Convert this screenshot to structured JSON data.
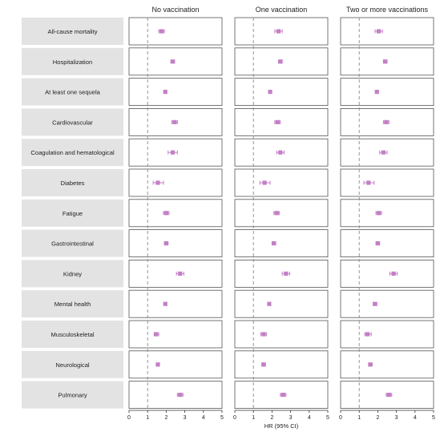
{
  "chart_data": {
    "type": "forest",
    "xlabel": "HR (95% CI)",
    "xlim": [
      0,
      5
    ],
    "xticks": [
      "0",
      "1",
      "2",
      "3",
      "4",
      "5"
    ],
    "reference_line": 1,
    "panels": [
      "No vaccination",
      "One vaccination",
      "Two or more vaccinations"
    ],
    "outcomes": [
      {
        "label": "All-cause mortality",
        "hr": [
          [
            1.75,
            1.6,
            1.9
          ],
          [
            2.35,
            2.15,
            2.55
          ],
          [
            2.05,
            1.85,
            2.25
          ]
        ]
      },
      {
        "label": "Hospitalization",
        "hr": [
          [
            2.35,
            2.25,
            2.45
          ],
          [
            2.45,
            2.35,
            2.55
          ],
          [
            2.4,
            2.3,
            2.5
          ]
        ]
      },
      {
        "label": "At least one sequela",
        "hr": [
          [
            1.95,
            1.9,
            2.0
          ],
          [
            1.9,
            1.85,
            1.95
          ],
          [
            1.95,
            1.9,
            2.0
          ]
        ]
      },
      {
        "label": "Cardiovascular",
        "hr": [
          [
            2.45,
            2.3,
            2.6
          ],
          [
            2.3,
            2.15,
            2.45
          ],
          [
            2.45,
            2.3,
            2.6
          ]
        ]
      },
      {
        "label": "Coagulation and hematological",
        "hr": [
          [
            2.35,
            2.1,
            2.6
          ],
          [
            2.45,
            2.25,
            2.65
          ],
          [
            2.3,
            2.1,
            2.5
          ]
        ]
      },
      {
        "label": "Diabetes",
        "hr": [
          [
            1.55,
            1.3,
            1.85
          ],
          [
            1.6,
            1.35,
            1.9
          ],
          [
            1.5,
            1.25,
            1.8
          ]
        ]
      },
      {
        "label": "Fatigue",
        "hr": [
          [
            2.0,
            1.85,
            2.15
          ],
          [
            2.25,
            2.1,
            2.4
          ],
          [
            2.05,
            1.9,
            2.2
          ]
        ]
      },
      {
        "label": "Gastrointestinal",
        "hr": [
          [
            2.0,
            1.9,
            2.1
          ],
          [
            2.1,
            2.0,
            2.2
          ],
          [
            2.0,
            1.9,
            2.1
          ]
        ]
      },
      {
        "label": "Kidney",
        "hr": [
          [
            2.75,
            2.55,
            2.95
          ],
          [
            2.75,
            2.55,
            2.95
          ],
          [
            2.85,
            2.65,
            3.05
          ]
        ]
      },
      {
        "label": "Mental health",
        "hr": [
          [
            1.95,
            1.9,
            2.0
          ],
          [
            1.85,
            1.78,
            1.92
          ],
          [
            1.85,
            1.75,
            1.95
          ]
        ]
      },
      {
        "label": "Musculoskeletal",
        "hr": [
          [
            1.45,
            1.35,
            1.6
          ],
          [
            1.55,
            1.4,
            1.7
          ],
          [
            1.45,
            1.3,
            1.65
          ]
        ]
      },
      {
        "label": "Neurological",
        "hr": [
          [
            1.55,
            1.5,
            1.6
          ],
          [
            1.55,
            1.45,
            1.65
          ],
          [
            1.6,
            1.5,
            1.7
          ]
        ]
      },
      {
        "label": "Pulmonary",
        "hr": [
          [
            2.75,
            2.6,
            2.9
          ],
          [
            2.6,
            2.45,
            2.75
          ],
          [
            2.6,
            2.45,
            2.75
          ]
        ]
      }
    ]
  },
  "colors": {
    "marker": "#c37fc6",
    "label_bg": "#e3e3e3",
    "border": "#555555",
    "reference": "#888888"
  }
}
